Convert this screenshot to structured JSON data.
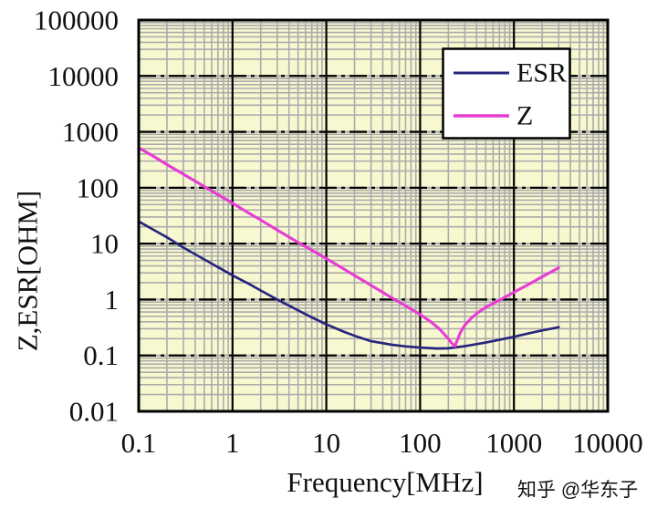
{
  "watermark": {
    "text": "知乎 @华东子",
    "color": "#c9c9c9"
  },
  "style": {
    "canvas_bg": "#ffffff",
    "plot_bg": "#f8f8d0",
    "minor_grid_color": "#ababab",
    "major_grid_color": "#000000",
    "major_grid_underlay": "#b0b0b0",
    "border_color": "#000000",
    "axis_text_color": "#111111",
    "legend_bg": "#ffffff",
    "legend_border": "#000000"
  },
  "chart_data": {
    "type": "line",
    "title": "",
    "xlabel": "Frequency[MHz]",
    "ylabel": "Z,ESR[OHM]",
    "xscale": "log",
    "yscale": "log",
    "xlim": [
      0.1,
      10000
    ],
    "ylim": [
      0.01,
      100000
    ],
    "grid": true,
    "legend_position": "top-right",
    "xticklabels": [
      "0.1",
      "1",
      "10",
      "100",
      "1000",
      "10000"
    ],
    "yticklabels": [
      "100000",
      "10000",
      "1000",
      "100",
      "10",
      "1",
      "0.1",
      "0.01"
    ],
    "series": [
      {
        "name": "ESR",
        "color": "#26267e",
        "points": [
          [
            0.1,
            25
          ],
          [
            0.15,
            17
          ],
          [
            0.2,
            13
          ],
          [
            0.3,
            8.5
          ],
          [
            0.5,
            5.2
          ],
          [
            0.7,
            3.8
          ],
          [
            1,
            2.7
          ],
          [
            1.5,
            1.9
          ],
          [
            2,
            1.45
          ],
          [
            3,
            1.0
          ],
          [
            5,
            0.64
          ],
          [
            7,
            0.48
          ],
          [
            10,
            0.36
          ],
          [
            15,
            0.27
          ],
          [
            20,
            0.225
          ],
          [
            30,
            0.18
          ],
          [
            50,
            0.155
          ],
          [
            70,
            0.145
          ],
          [
            100,
            0.138
          ],
          [
            150,
            0.133
          ],
          [
            200,
            0.134
          ],
          [
            300,
            0.146
          ],
          [
            500,
            0.17
          ],
          [
            700,
            0.19
          ],
          [
            1000,
            0.215
          ],
          [
            1500,
            0.252
          ],
          [
            2000,
            0.28
          ],
          [
            3000,
            0.32
          ]
        ]
      },
      {
        "name": "Z",
        "color": "#e83bd5",
        "points": [
          [
            0.1,
            520
          ],
          [
            0.15,
            350
          ],
          [
            0.2,
            260
          ],
          [
            0.3,
            175
          ],
          [
            0.5,
            105
          ],
          [
            0.7,
            75
          ],
          [
            1,
            53
          ],
          [
            1.5,
            35
          ],
          [
            2,
            26.5
          ],
          [
            3,
            17.5
          ],
          [
            5,
            10.5
          ],
          [
            7,
            7.6
          ],
          [
            10,
            5.4
          ],
          [
            15,
            3.6
          ],
          [
            20,
            2.7
          ],
          [
            30,
            1.8
          ],
          [
            50,
            1.07
          ],
          [
            70,
            0.77
          ],
          [
            100,
            0.54
          ],
          [
            130,
            0.4
          ],
          [
            160,
            0.3
          ],
          [
            200,
            0.2
          ],
          [
            220,
            0.162
          ],
          [
            235,
            0.147
          ],
          [
            250,
            0.19
          ],
          [
            270,
            0.26
          ],
          [
            300,
            0.35
          ],
          [
            350,
            0.46
          ],
          [
            400,
            0.56
          ],
          [
            500,
            0.73
          ],
          [
            700,
            0.97
          ],
          [
            1000,
            1.35
          ],
          [
            1500,
            1.95
          ],
          [
            2000,
            2.55
          ],
          [
            3000,
            3.7
          ]
        ]
      }
    ]
  }
}
